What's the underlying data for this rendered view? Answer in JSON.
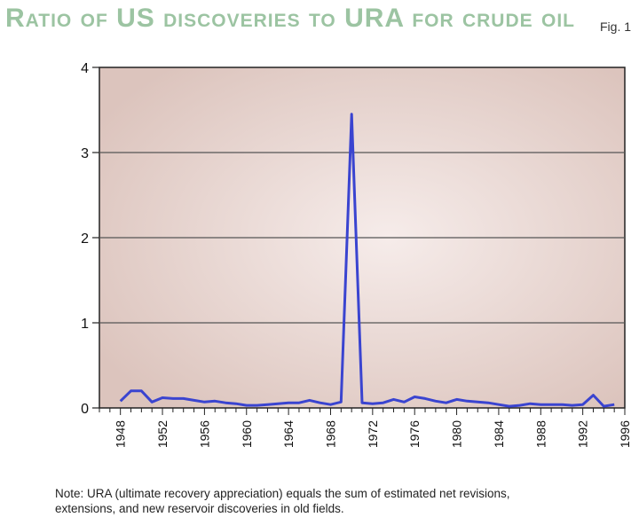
{
  "chart_data": {
    "type": "line",
    "title": "Ratio of US discoveries to URA for crude oil",
    "figure_label": "Fig. 1",
    "xlabel": "",
    "ylabel": "",
    "xlim": [
      1946,
      1996
    ],
    "ylim": [
      0,
      4
    ],
    "y_ticks": [
      0,
      1,
      2,
      3,
      4
    ],
    "x_ticks": [
      1948,
      1952,
      1956,
      1960,
      1964,
      1968,
      1972,
      1976,
      1980,
      1984,
      1988,
      1992,
      1996
    ],
    "grid": "horizontal",
    "colors": {
      "line": "#3a44d0",
      "plot_bg_center": "#f6ecea",
      "plot_bg_edge": "#dcc4bd",
      "gridline": "#555555",
      "title": "#9cc4a2"
    },
    "series": [
      {
        "x": [
          1948,
          1949,
          1950,
          1951,
          1952,
          1953,
          1954,
          1955,
          1956,
          1957,
          1958,
          1959,
          1960,
          1961,
          1962,
          1963,
          1964,
          1965,
          1966,
          1967,
          1968,
          1969,
          1970,
          1971,
          1972,
          1973,
          1974,
          1975,
          1976,
          1977,
          1978,
          1979,
          1980,
          1981,
          1982,
          1983,
          1984,
          1985,
          1986,
          1987,
          1988,
          1989,
          1990,
          1991,
          1992,
          1993,
          1994,
          1995
        ],
        "values": [
          0.08,
          0.2,
          0.2,
          0.07,
          0.12,
          0.11,
          0.11,
          0.09,
          0.07,
          0.08,
          0.06,
          0.05,
          0.03,
          0.03,
          0.04,
          0.05,
          0.06,
          0.06,
          0.09,
          0.06,
          0.04,
          0.07,
          3.45,
          0.06,
          0.05,
          0.06,
          0.1,
          0.07,
          0.13,
          0.11,
          0.08,
          0.06,
          0.1,
          0.08,
          0.07,
          0.06,
          0.04,
          0.02,
          0.03,
          0.05,
          0.04,
          0.04,
          0.04,
          0.03,
          0.04,
          0.15,
          0.02,
          0.04
        ]
      }
    ]
  },
  "note": {
    "line1": "Note: URA (ultimate recovery appreciation) equals the sum of estimated net revisions,",
    "line2": "extensions, and new reservoir discoveries in old fields."
  }
}
